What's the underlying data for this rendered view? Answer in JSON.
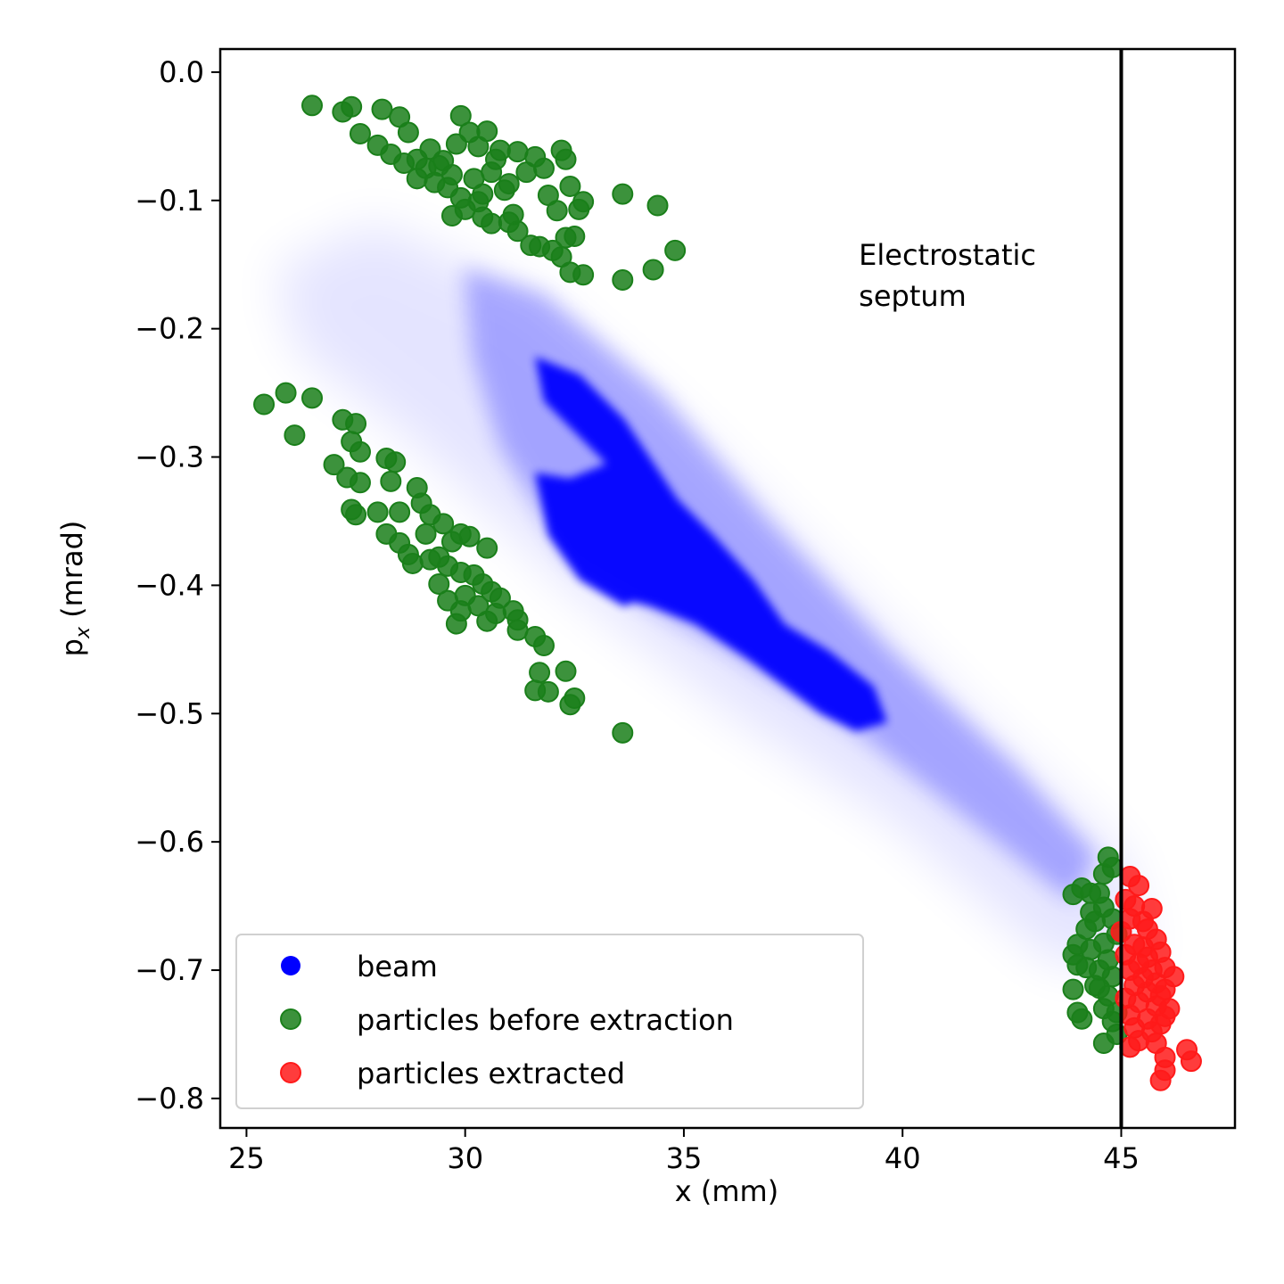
{
  "chart_data": {
    "type": "scatter",
    "title": "",
    "xlabel": "x (mm)",
    "ylabel_main": "p",
    "ylabel_sub": "x",
    "ylabel_tail": " (mrad)",
    "xlim": [
      24.4,
      47.6
    ],
    "ylim": [
      -0.823,
      0.018
    ],
    "xticks": [
      25,
      30,
      35,
      40,
      45
    ],
    "xtick_labels": [
      "25",
      "30",
      "35",
      "40",
      "45"
    ],
    "yticks": [
      0.0,
      -0.1,
      -0.2,
      -0.3,
      -0.4,
      -0.5,
      -0.6,
      -0.7,
      -0.8
    ],
    "ytick_labels": [
      "0.0",
      "−0.1",
      "−0.2",
      "−0.3",
      "−0.4",
      "−0.5",
      "−0.6",
      "−0.7",
      "−0.8"
    ],
    "septum": {
      "x": 45.0,
      "label_line1": "Electrostatic",
      "label_line2": "septum",
      "label_x": 39.0,
      "label_y": -0.16
    },
    "legend": {
      "position": "lower-left",
      "entries": [
        {
          "label": "beam",
          "color": "#0000ff"
        },
        {
          "label": "particles before extraction",
          "color": "#1a7f1a"
        },
        {
          "label": "particles extracted",
          "color": "#ff1a1a"
        }
      ]
    },
    "series": [
      {
        "name": "beam",
        "color": "#0000ff",
        "description_core": [
          [
            33.5,
            -0.33
          ],
          [
            34.2,
            -0.36
          ],
          [
            35.0,
            -0.4
          ],
          [
            36.0,
            -0.42
          ],
          [
            37.3,
            -0.46
          ],
          [
            38.5,
            -0.49
          ],
          [
            32.8,
            -0.27
          ],
          [
            33.0,
            -0.38
          ]
        ]
      },
      {
        "name": "particles before extraction",
        "color": "#1a7f1a",
        "points": [
          [
            26.5,
            -0.026
          ],
          [
            27.2,
            -0.031
          ],
          [
            27.4,
            -0.027
          ],
          [
            28.1,
            -0.029
          ],
          [
            28.5,
            -0.035
          ],
          [
            27.6,
            -0.048
          ],
          [
            28.7,
            -0.047
          ],
          [
            28.0,
            -0.057
          ],
          [
            28.3,
            -0.064
          ],
          [
            28.6,
            -0.071
          ],
          [
            28.9,
            -0.068
          ],
          [
            29.2,
            -0.06
          ],
          [
            29.5,
            -0.069
          ],
          [
            29.8,
            -0.056
          ],
          [
            29.9,
            -0.034
          ],
          [
            30.1,
            -0.047
          ],
          [
            30.5,
            -0.046
          ],
          [
            30.3,
            -0.058
          ],
          [
            30.8,
            -0.061
          ],
          [
            31.2,
            -0.062
          ],
          [
            31.6,
            -0.066
          ],
          [
            32.2,
            -0.061
          ],
          [
            32.3,
            -0.068
          ],
          [
            31.8,
            -0.075
          ],
          [
            31.4,
            -0.078
          ],
          [
            30.6,
            -0.078
          ],
          [
            30.2,
            -0.083
          ],
          [
            29.7,
            -0.08
          ],
          [
            29.3,
            -0.086
          ],
          [
            28.9,
            -0.083
          ],
          [
            29.1,
            -0.075
          ],
          [
            29.6,
            -0.09
          ],
          [
            30.9,
            -0.092
          ],
          [
            30.4,
            -0.095
          ],
          [
            31.9,
            -0.096
          ],
          [
            32.1,
            -0.108
          ],
          [
            32.7,
            -0.101
          ],
          [
            32.6,
            -0.107
          ],
          [
            32.4,
            -0.089
          ],
          [
            33.6,
            -0.095
          ],
          [
            34.4,
            -0.104
          ],
          [
            29.7,
            -0.112
          ],
          [
            30.0,
            -0.107
          ],
          [
            30.4,
            -0.113
          ],
          [
            30.6,
            -0.118
          ],
          [
            31.0,
            -0.117
          ],
          [
            31.1,
            -0.111
          ],
          [
            31.2,
            -0.124
          ],
          [
            31.5,
            -0.135
          ],
          [
            31.7,
            -0.136
          ],
          [
            32.0,
            -0.139
          ],
          [
            32.2,
            -0.144
          ],
          [
            32.3,
            -0.129
          ],
          [
            32.5,
            -0.128
          ],
          [
            32.4,
            -0.156
          ],
          [
            32.7,
            -0.158
          ],
          [
            33.6,
            -0.162
          ],
          [
            34.3,
            -0.154
          ],
          [
            34.8,
            -0.139
          ],
          [
            29.9,
            -0.098
          ],
          [
            30.3,
            -0.101
          ],
          [
            31.0,
            -0.087
          ],
          [
            29.4,
            -0.073
          ],
          [
            30.7,
            -0.068
          ],
          [
            25.4,
            -0.259
          ],
          [
            25.9,
            -0.25
          ],
          [
            26.5,
            -0.254
          ],
          [
            26.1,
            -0.283
          ],
          [
            27.2,
            -0.271
          ],
          [
            27.5,
            -0.274
          ],
          [
            27.4,
            -0.288
          ],
          [
            27.6,
            -0.296
          ],
          [
            27.0,
            -0.306
          ],
          [
            27.3,
            -0.316
          ],
          [
            27.6,
            -0.32
          ],
          [
            28.2,
            -0.301
          ],
          [
            28.4,
            -0.304
          ],
          [
            28.3,
            -0.319
          ],
          [
            28.9,
            -0.324
          ],
          [
            29.0,
            -0.336
          ],
          [
            29.2,
            -0.345
          ],
          [
            29.5,
            -0.352
          ],
          [
            29.9,
            -0.36
          ],
          [
            30.1,
            -0.362
          ],
          [
            30.5,
            -0.371
          ],
          [
            27.4,
            -0.341
          ],
          [
            27.5,
            -0.345
          ],
          [
            28.0,
            -0.343
          ],
          [
            28.5,
            -0.343
          ],
          [
            28.2,
            -0.36
          ],
          [
            28.5,
            -0.367
          ],
          [
            28.7,
            -0.376
          ],
          [
            28.8,
            -0.383
          ],
          [
            29.2,
            -0.38
          ],
          [
            29.4,
            -0.378
          ],
          [
            29.6,
            -0.385
          ],
          [
            29.9,
            -0.39
          ],
          [
            30.2,
            -0.392
          ],
          [
            30.4,
            -0.399
          ],
          [
            30.6,
            -0.405
          ],
          [
            30.8,
            -0.41
          ],
          [
            31.1,
            -0.42
          ],
          [
            31.2,
            -0.427
          ],
          [
            31.2,
            -0.435
          ],
          [
            31.6,
            -0.44
          ],
          [
            31.8,
            -0.447
          ],
          [
            31.7,
            -0.468
          ],
          [
            32.3,
            -0.467
          ],
          [
            31.6,
            -0.482
          ],
          [
            31.9,
            -0.483
          ],
          [
            32.5,
            -0.488
          ],
          [
            32.4,
            -0.493
          ],
          [
            33.6,
            -0.515
          ],
          [
            29.4,
            -0.399
          ],
          [
            29.6,
            -0.412
          ],
          [
            29.9,
            -0.42
          ],
          [
            30.0,
            -0.408
          ],
          [
            29.8,
            -0.43
          ],
          [
            30.3,
            -0.416
          ],
          [
            30.7,
            -0.422
          ],
          [
            30.5,
            -0.428
          ],
          [
            29.1,
            -0.36
          ],
          [
            29.7,
            -0.366
          ],
          [
            44.7,
            -0.612
          ],
          [
            44.8,
            -0.62
          ],
          [
            44.6,
            -0.625
          ],
          [
            44.5,
            -0.64
          ],
          [
            44.3,
            -0.64
          ],
          [
            44.1,
            -0.636
          ],
          [
            43.9,
            -0.641
          ],
          [
            44.6,
            -0.651
          ],
          [
            44.8,
            -0.66
          ],
          [
            44.4,
            -0.662
          ],
          [
            44.2,
            -0.668
          ],
          [
            44.9,
            -0.672
          ],
          [
            44.6,
            -0.679
          ],
          [
            44.3,
            -0.684
          ],
          [
            44.0,
            -0.68
          ],
          [
            43.9,
            -0.688
          ],
          [
            44.7,
            -0.692
          ],
          [
            44.2,
            -0.698
          ],
          [
            44.5,
            -0.7
          ],
          [
            44.8,
            -0.705
          ],
          [
            44.0,
            -0.696
          ],
          [
            44.4,
            -0.712
          ],
          [
            43.9,
            -0.715
          ],
          [
            44.7,
            -0.72
          ],
          [
            44.6,
            -0.73
          ],
          [
            44.9,
            -0.733
          ],
          [
            44.0,
            -0.733
          ],
          [
            44.1,
            -0.738
          ],
          [
            44.8,
            -0.74
          ],
          [
            44.9,
            -0.75
          ],
          [
            44.6,
            -0.757
          ],
          [
            44.5,
            -0.714
          ],
          [
            44.3,
            -0.655
          ]
        ]
      },
      {
        "name": "particles extracted",
        "color": "#ff1a1a",
        "points": [
          [
            45.2,
            -0.627
          ],
          [
            45.4,
            -0.634
          ],
          [
            45.1,
            -0.645
          ],
          [
            45.3,
            -0.65
          ],
          [
            45.7,
            -0.652
          ],
          [
            45.2,
            -0.66
          ],
          [
            45.5,
            -0.662
          ],
          [
            45.0,
            -0.67
          ],
          [
            45.6,
            -0.668
          ],
          [
            45.8,
            -0.676
          ],
          [
            45.3,
            -0.68
          ],
          [
            45.1,
            -0.688
          ],
          [
            45.6,
            -0.69
          ],
          [
            45.9,
            -0.686
          ],
          [
            45.4,
            -0.695
          ],
          [
            45.2,
            -0.7
          ],
          [
            45.7,
            -0.7
          ],
          [
            46.0,
            -0.698
          ],
          [
            45.5,
            -0.706
          ],
          [
            45.8,
            -0.71
          ],
          [
            46.2,
            -0.705
          ],
          [
            45.3,
            -0.712
          ],
          [
            45.6,
            -0.717
          ],
          [
            46.0,
            -0.715
          ],
          [
            45.1,
            -0.722
          ],
          [
            45.4,
            -0.725
          ],
          [
            45.8,
            -0.728
          ],
          [
            46.1,
            -0.73
          ],
          [
            45.2,
            -0.735
          ],
          [
            45.6,
            -0.738
          ],
          [
            46.0,
            -0.736
          ],
          [
            45.3,
            -0.745
          ],
          [
            45.7,
            -0.748
          ],
          [
            45.9,
            -0.742
          ],
          [
            45.4,
            -0.755
          ],
          [
            45.8,
            -0.757
          ],
          [
            45.2,
            -0.76
          ],
          [
            46.5,
            -0.762
          ],
          [
            46.0,
            -0.768
          ],
          [
            46.6,
            -0.771
          ],
          [
            46.0,
            -0.778
          ],
          [
            45.9,
            -0.786
          ],
          [
            45.5,
            -0.682
          ],
          [
            45.9,
            -0.72
          ]
        ]
      }
    ]
  }
}
